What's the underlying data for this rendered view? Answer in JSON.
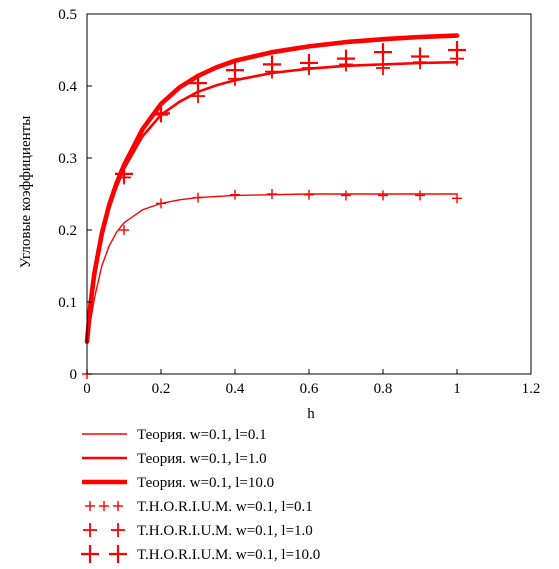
{
  "chart_data": {
    "type": "line",
    "xlabel": "h",
    "ylabel": "Угловые коэффициенты",
    "xlim": [
      0,
      1.2
    ],
    "ylim": [
      0,
      0.5
    ],
    "x_ticks": [
      "0",
      "0.2",
      "0.4",
      "0.6",
      "0.8",
      "1",
      "1.2"
    ],
    "y_ticks": [
      "0",
      "0.1",
      "0.2",
      "0.3",
      "0.4",
      "0.5"
    ],
    "grid": false,
    "legend_position": "bottom",
    "color": "#ff0000",
    "series": [
      {
        "name": "Теория. w=0.1, l=0.1",
        "kind": "line",
        "line_weight": "thin",
        "x": [
          0.0,
          0.01,
          0.02,
          0.04,
          0.06,
          0.08,
          0.1,
          0.15,
          0.2,
          0.25,
          0.3,
          0.4,
          0.5,
          0.6,
          0.7,
          0.8,
          0.9,
          1.0
        ],
        "y": [
          0.045,
          0.075,
          0.105,
          0.15,
          0.178,
          0.197,
          0.21,
          0.228,
          0.237,
          0.242,
          0.245,
          0.248,
          0.249,
          0.25,
          0.25,
          0.25,
          0.25,
          0.25
        ]
      },
      {
        "name": "Теория. w=0.1, l=1.0",
        "kind": "line",
        "line_weight": "medium",
        "x": [
          0.0,
          0.01,
          0.02,
          0.04,
          0.06,
          0.08,
          0.1,
          0.15,
          0.2,
          0.25,
          0.3,
          0.35,
          0.4,
          0.5,
          0.6,
          0.7,
          0.8,
          0.9,
          1.0
        ],
        "y": [
          0.045,
          0.1,
          0.135,
          0.19,
          0.23,
          0.26,
          0.285,
          0.33,
          0.36,
          0.378,
          0.392,
          0.401,
          0.408,
          0.418,
          0.424,
          0.428,
          0.43,
          0.432,
          0.433
        ]
      },
      {
        "name": "Теория. w=0.1, l=10.0",
        "kind": "line",
        "line_weight": "thick",
        "x": [
          0.0,
          0.01,
          0.02,
          0.04,
          0.06,
          0.08,
          0.1,
          0.15,
          0.2,
          0.25,
          0.3,
          0.35,
          0.4,
          0.5,
          0.6,
          0.7,
          0.8,
          0.9,
          1.0
        ],
        "y": [
          0.045,
          0.1,
          0.14,
          0.195,
          0.235,
          0.265,
          0.29,
          0.34,
          0.375,
          0.398,
          0.414,
          0.426,
          0.435,
          0.447,
          0.455,
          0.461,
          0.465,
          0.468,
          0.47
        ]
      },
      {
        "name": "T.H.O.R.I.U.M. w=0.1, l=0.1",
        "kind": "markers",
        "marker_size": "small",
        "x": [
          0.0,
          0.1,
          0.2,
          0.3,
          0.4,
          0.5,
          0.6,
          0.7,
          0.8,
          0.9,
          1.0
        ],
        "y": [
          0.0,
          0.2,
          0.237,
          0.245,
          0.249,
          0.25,
          0.249,
          0.248,
          0.248,
          0.248,
          0.244
        ]
      },
      {
        "name": "T.H.O.R.I.U.M. w=0.1, l=1.0",
        "kind": "markers",
        "marker_size": "medium",
        "x": [
          0.1,
          0.2,
          0.3,
          0.4,
          0.5,
          0.6,
          0.7,
          0.8,
          0.9,
          1.0
        ],
        "y": [
          0.273,
          0.36,
          0.386,
          0.41,
          0.42,
          0.425,
          0.43,
          0.425,
          0.433,
          0.438
        ]
      },
      {
        "name": "T.H.O.R.I.U.M. w=0.1, l=10.0",
        "kind": "markers",
        "marker_size": "large",
        "x": [
          0.1,
          0.2,
          0.3,
          0.4,
          0.5,
          0.6,
          0.7,
          0.8,
          0.9,
          1.0
        ],
        "y": [
          0.278,
          0.362,
          0.404,
          0.422,
          0.43,
          0.432,
          0.438,
          0.447,
          0.441,
          0.45
        ]
      }
    ]
  }
}
